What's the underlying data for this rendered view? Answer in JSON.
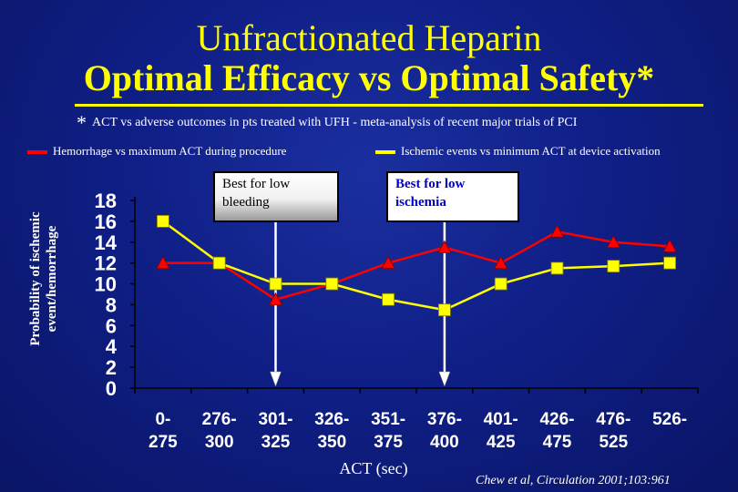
{
  "title_line1": "Unfractionated Heparin",
  "title_line2": "Optimal Efficacy vs Optimal Safety*",
  "footnote_star": "*",
  "footnote": "ACT vs adverse outcomes in pts treated with UFH -  meta-analysis of recent major trials of PCI",
  "callout_bleeding": "Best for low bleeding",
  "callout_ischemia": "Best for low ischemia",
  "citation": "Chew et al, Circulation 2001;103:961",
  "colors": {
    "hemorrhage": "#ff0000",
    "ischemic": "#ffff00",
    "background": "#0f1f86"
  },
  "chart_data": {
    "type": "line",
    "xlabel": "ACT (sec)",
    "ylabel": "Probability of ischemic event/hemorrhage",
    "ylim": [
      0,
      18
    ],
    "yticks": [
      0,
      2,
      4,
      6,
      8,
      10,
      12,
      14,
      16,
      18
    ],
    "categories": [
      [
        "0-",
        "275"
      ],
      [
        "276-",
        "300"
      ],
      [
        "301-",
        "325"
      ],
      [
        "326-",
        "350"
      ],
      [
        "351-",
        "375"
      ],
      [
        "376-",
        "400"
      ],
      [
        "401-",
        "425"
      ],
      [
        "426-",
        "475"
      ],
      [
        "476-",
        "525"
      ],
      [
        "526-",
        ""
      ]
    ],
    "series": [
      {
        "name": "Hemorrhage vs maximum ACT during procedure",
        "marker": "triangle",
        "values": [
          12,
          12,
          8.5,
          10,
          12,
          13.5,
          12,
          15,
          14,
          13.6
        ]
      },
      {
        "name": "Ischemic events vs minimum ACT at device activation",
        "marker": "square",
        "values": [
          16,
          12,
          10,
          10,
          8.5,
          7.5,
          10,
          11.5,
          11.7,
          12
        ]
      }
    ],
    "annotations": [
      {
        "label": "Best for low bleeding",
        "category_index": 2
      },
      {
        "label": "Best for low ischemia",
        "category_index": 5
      }
    ]
  }
}
